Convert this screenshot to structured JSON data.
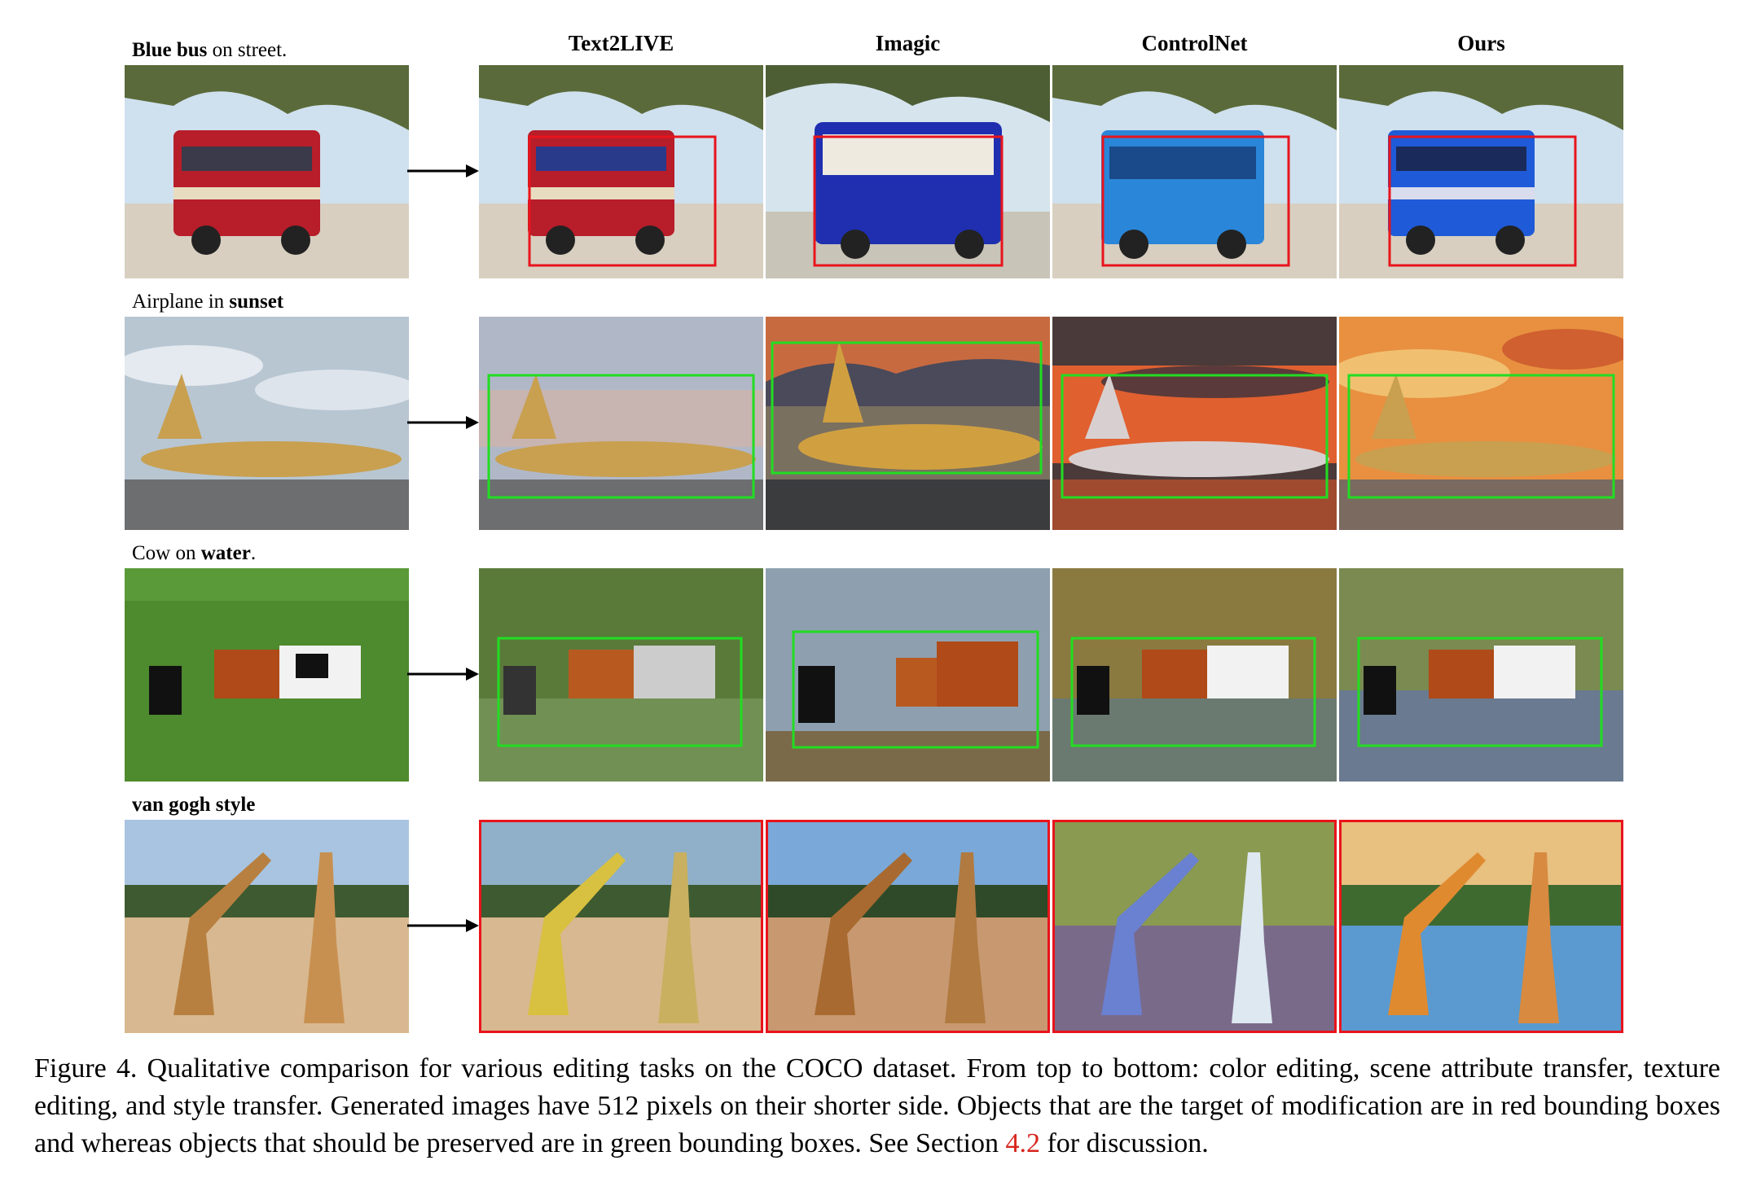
{
  "columns": [
    "Text2LIVE",
    "Imagic",
    "ControlNet",
    "Ours"
  ],
  "rows": [
    {
      "prefix": "",
      "bold": "Blue bus",
      "suffix": " on street."
    },
    {
      "prefix": "Airplane in ",
      "bold": "sunset",
      "suffix": ""
    },
    {
      "prefix": "Cow on ",
      "bold": "water",
      "suffix": "."
    },
    {
      "prefix": "",
      "bold": "van gogh style",
      "suffix": ""
    }
  ],
  "caption": {
    "text": "Figure 4. Qualitative comparison for various editing tasks on the COCO dataset. From top to bottom: color editing, scene attribute transfer, texture editing, and style transfer. Generated images have 512 pixels on their shorter side. Objects that are the target of modification are in red bounding boxes and whereas objects that should be preserved are in green bounding boxes. See Section ",
    "ref": "4.2",
    "end": " for discussion."
  },
  "colors": {
    "target_box": "#e8141c",
    "preserve_box": "#22dd22"
  }
}
